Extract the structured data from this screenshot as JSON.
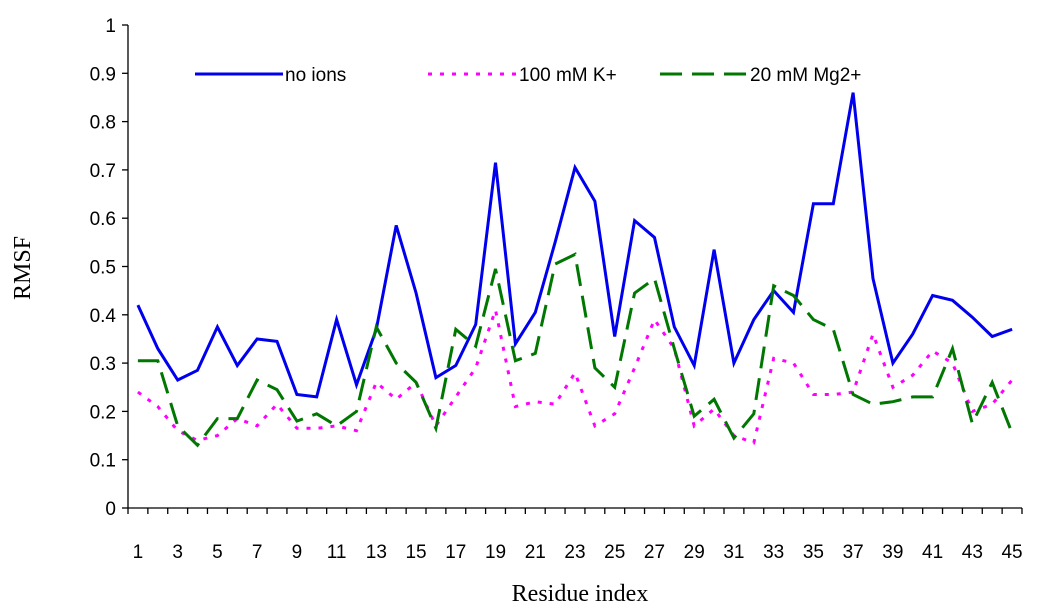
{
  "chart_data": {
    "type": "line",
    "xlabel": "Residue index",
    "ylabel": "RMSF",
    "x": [
      1,
      2,
      3,
      4,
      5,
      6,
      7,
      8,
      9,
      10,
      11,
      12,
      13,
      14,
      15,
      16,
      17,
      18,
      19,
      20,
      21,
      22,
      23,
      24,
      25,
      26,
      27,
      28,
      29,
      30,
      31,
      32,
      33,
      34,
      35,
      36,
      37,
      38,
      39,
      40,
      41,
      42,
      43,
      44,
      45
    ],
    "x_tick_labels": [
      "1",
      "3",
      "5",
      "7",
      "9",
      "11",
      "13",
      "15",
      "17",
      "19",
      "21",
      "23",
      "25",
      "27",
      "29",
      "31",
      "33",
      "35",
      "37",
      "39",
      "41",
      "43",
      "45"
    ],
    "ylim": [
      0,
      1
    ],
    "y_tick_labels": [
      "0",
      "0.1",
      "0.2",
      "0.3",
      "0.4",
      "0.5",
      "0.6",
      "0.7",
      "0.8",
      "0.9",
      "1"
    ],
    "grid": false,
    "legend_position": "top",
    "series": [
      {
        "name": "no ions",
        "color": "#0000ee",
        "style": "solid",
        "values": [
          0.42,
          0.33,
          0.265,
          0.285,
          0.375,
          0.295,
          0.35,
          0.345,
          0.235,
          0.23,
          0.39,
          0.255,
          0.37,
          0.585,
          0.445,
          0.27,
          0.295,
          0.38,
          0.715,
          0.34,
          0.405,
          0.55,
          0.705,
          0.635,
          0.355,
          0.595,
          0.56,
          0.375,
          0.295,
          0.535,
          0.3,
          0.39,
          0.45,
          0.405,
          0.63,
          0.63,
          0.86,
          0.475,
          0.3,
          0.36,
          0.44,
          0.43,
          0.395,
          0.355,
          0.37
        ]
      },
      {
        "name": "100 mM K+",
        "color": "#ff00ff",
        "style": "dotted",
        "values": [
          0.24,
          0.21,
          0.16,
          0.14,
          0.15,
          0.185,
          0.17,
          0.215,
          0.165,
          0.165,
          0.17,
          0.16,
          0.26,
          0.225,
          0.26,
          0.17,
          0.23,
          0.29,
          0.41,
          0.21,
          0.22,
          0.215,
          0.28,
          0.17,
          0.195,
          0.29,
          0.39,
          0.33,
          0.17,
          0.205,
          0.15,
          0.135,
          0.31,
          0.3,
          0.235,
          0.235,
          0.24,
          0.36,
          0.25,
          0.275,
          0.325,
          0.3,
          0.2,
          0.215,
          0.265
        ]
      },
      {
        "name": "20 mM Mg2+",
        "color": "#007700",
        "style": "dashed",
        "values": [
          0.305,
          0.305,
          0.17,
          0.13,
          0.185,
          0.185,
          0.265,
          0.245,
          0.18,
          0.195,
          0.17,
          0.2,
          0.375,
          0.3,
          0.26,
          0.165,
          0.37,
          0.335,
          0.495,
          0.305,
          0.32,
          0.505,
          0.525,
          0.29,
          0.25,
          0.445,
          0.475,
          0.33,
          0.19,
          0.225,
          0.145,
          0.195,
          0.46,
          0.44,
          0.39,
          0.37,
          0.235,
          0.215,
          0.22,
          0.23,
          0.23,
          0.33,
          0.175,
          0.26,
          0.155
        ]
      }
    ]
  }
}
